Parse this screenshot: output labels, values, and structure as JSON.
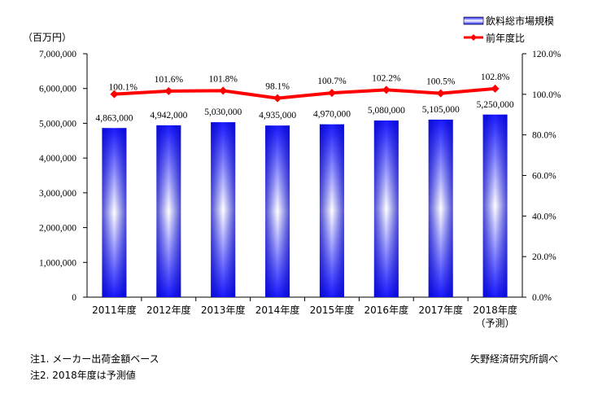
{
  "chart_data": {
    "type": "bar+line",
    "categories": [
      "2011年度",
      "2012年度",
      "2013年度",
      "2014年度",
      "2015年度",
      "2016年度",
      "2017年度",
      "2018年度"
    ],
    "category_sublabels": [
      "",
      "",
      "",
      "",
      "",
      "",
      "",
      "（予測）"
    ],
    "series": [
      {
        "name": "飲料総市場規模",
        "type": "bar",
        "axis": "left",
        "values": [
          4863000,
          4942000,
          5030000,
          4935000,
          4970000,
          5080000,
          5105000,
          5250000
        ],
        "labels": [
          "4,863,000",
          "4,942,000",
          "5,030,000",
          "4,935,000",
          "4,970,000",
          "5,080,000",
          "5,105,000",
          "5,250,000"
        ],
        "color": "#2222ee"
      },
      {
        "name": "前年度比",
        "type": "line",
        "axis": "right",
        "values": [
          100.1,
          101.6,
          101.8,
          98.1,
          100.7,
          102.2,
          100.5,
          102.8
        ],
        "labels": [
          "100.1%",
          "101.6%",
          "101.8%",
          "98.1%",
          "100.7%",
          "102.2%",
          "100.5%",
          "102.8%"
        ],
        "color": "#ff0000"
      }
    ],
    "left_axis": {
      "unit_label": "（百万円）",
      "range": [
        0,
        7000000
      ],
      "ticks": [
        "0",
        "1,000,000",
        "2,000,000",
        "3,000,000",
        "4,000,000",
        "5,000,000",
        "6,000,000",
        "7,000,000"
      ]
    },
    "right_axis": {
      "range": [
        0,
        120
      ],
      "ticks": [
        "0.0%",
        "20.0%",
        "40.0%",
        "60.0%",
        "80.0%",
        "100.0%",
        "120.0%"
      ]
    },
    "legend_position": "top-right",
    "grid": false
  },
  "notes": [
    "注1. メーカー出荷金額ベース",
    "注2. 2018年度は予測値"
  ],
  "source": "矢野経済研究所調べ"
}
